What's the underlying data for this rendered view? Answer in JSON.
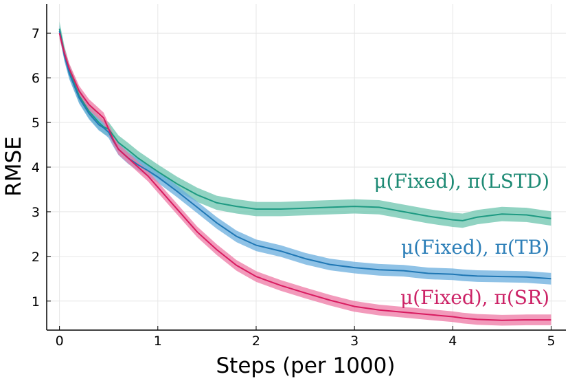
{
  "chart_data": {
    "type": "line",
    "xlabel": "Steps (per 1000)",
    "ylabel": "RMSE",
    "xlim": [
      -0.13,
      5.15
    ],
    "ylim": [
      0.35,
      7.65
    ],
    "xticks": [
      0,
      1,
      2,
      3,
      4,
      5
    ],
    "yticks": [
      1,
      2,
      3,
      4,
      5,
      6,
      7
    ],
    "grid": true,
    "legend": "inline labels at right end of each series",
    "x": [
      0,
      0.05,
      0.1,
      0.2,
      0.3,
      0.4,
      0.45,
      0.5,
      0.55,
      0.6,
      0.7,
      0.8,
      0.9,
      1.0,
      1.2,
      1.4,
      1.6,
      1.8,
      2.0,
      2.25,
      2.5,
      2.75,
      3.0,
      3.25,
      3.5,
      3.75,
      4.0,
      4.1,
      4.25,
      4.5,
      4.75,
      5.0
    ],
    "series": [
      {
        "name": "μ(Fixed), π(LSTD)",
        "color": "#1d9a82",
        "band_color": "#6cc4ad",
        "values": [
          7.1,
          6.55,
          6.15,
          5.6,
          5.25,
          5.0,
          4.9,
          4.85,
          4.7,
          4.55,
          4.38,
          4.2,
          4.05,
          3.9,
          3.62,
          3.38,
          3.2,
          3.12,
          3.06,
          3.06,
          3.08,
          3.1,
          3.12,
          3.1,
          3.0,
          2.9,
          2.82,
          2.8,
          2.88,
          2.95,
          2.93,
          2.85
        ],
        "band": 0.16
      },
      {
        "name": "μ(Fixed), π(TB)",
        "color": "#1f77b4",
        "band_color": "#6aaede",
        "values": [
          7.05,
          6.5,
          6.1,
          5.55,
          5.2,
          4.95,
          4.88,
          4.78,
          4.58,
          4.4,
          4.2,
          4.05,
          3.92,
          3.78,
          3.45,
          3.1,
          2.75,
          2.45,
          2.25,
          2.12,
          1.95,
          1.82,
          1.75,
          1.7,
          1.68,
          1.62,
          1.6,
          1.58,
          1.56,
          1.55,
          1.54,
          1.5
        ],
        "band": 0.13
      },
      {
        "name": "μ(Fixed), π(SR)",
        "color": "#d81b60",
        "band_color": "#ee78a4",
        "values": [
          7.0,
          6.55,
          6.2,
          5.7,
          5.4,
          5.2,
          5.1,
          4.85,
          4.6,
          4.4,
          4.2,
          4.0,
          3.8,
          3.55,
          3.05,
          2.55,
          2.15,
          1.8,
          1.55,
          1.35,
          1.18,
          1.02,
          0.88,
          0.8,
          0.75,
          0.7,
          0.65,
          0.62,
          0.59,
          0.57,
          0.58,
          0.58
        ],
        "band": 0.12
      }
    ]
  },
  "labels": {
    "lstd": "μ(Fixed), π(LSTD)",
    "tb": "μ(Fixed), π(TB)",
    "sr": "μ(Fixed), π(SR)"
  }
}
